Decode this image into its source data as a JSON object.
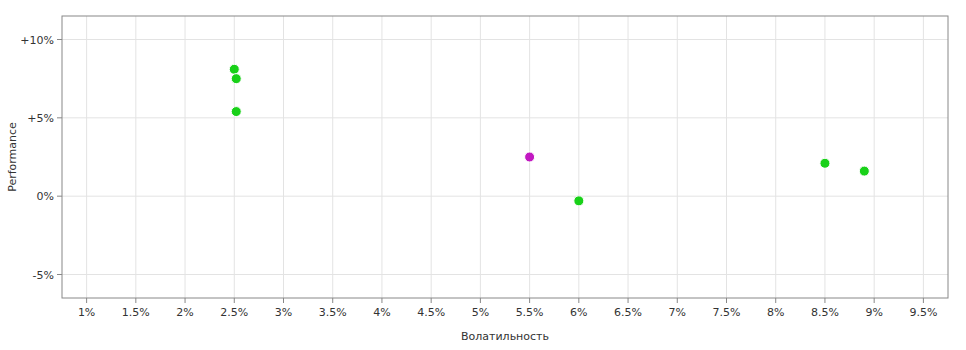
{
  "chart_data": {
    "type": "scatter",
    "xlabel": "Волатильность",
    "ylabel": "Performance",
    "x": [
      2.5,
      2.52,
      2.52,
      5.5,
      6.0,
      8.5,
      8.9
    ],
    "values": [
      8.1,
      7.5,
      5.4,
      2.5,
      -0.3,
      2.1,
      1.6
    ],
    "colors": [
      "#00cc00",
      "#00cc00",
      "#00cc00",
      "#bb00bb",
      "#00cc00",
      "#00cc00",
      "#00cc00"
    ],
    "xlim": [
      0.75,
      9.75
    ],
    "ylim": [
      -6.5,
      11.5
    ],
    "xticks": [
      {
        "value": 1.0,
        "label": "1%"
      },
      {
        "value": 1.5,
        "label": "1.5%"
      },
      {
        "value": 2.0,
        "label": "2%"
      },
      {
        "value": 2.5,
        "label": "2.5%"
      },
      {
        "value": 3.0,
        "label": "3%"
      },
      {
        "value": 3.5,
        "label": "3.5%"
      },
      {
        "value": 4.0,
        "label": "4%"
      },
      {
        "value": 4.5,
        "label": "4.5%"
      },
      {
        "value": 5.0,
        "label": "5%"
      },
      {
        "value": 5.5,
        "label": "5.5%"
      },
      {
        "value": 6.0,
        "label": "6%"
      },
      {
        "value": 6.5,
        "label": "6.5%"
      },
      {
        "value": 7.0,
        "label": "7%"
      },
      {
        "value": 7.5,
        "label": "7.5%"
      },
      {
        "value": 8.0,
        "label": "8%"
      },
      {
        "value": 8.5,
        "label": "8.5%"
      },
      {
        "value": 9.0,
        "label": "9%"
      },
      {
        "value": 9.5,
        "label": "9.5%"
      }
    ],
    "yticks": [
      {
        "value": -5,
        "label": "-5%"
      },
      {
        "value": 0,
        "label": "0%"
      },
      {
        "value": 5,
        "label": "+5%"
      },
      {
        "value": 10,
        "label": "+10%"
      }
    ],
    "grid": true
  }
}
